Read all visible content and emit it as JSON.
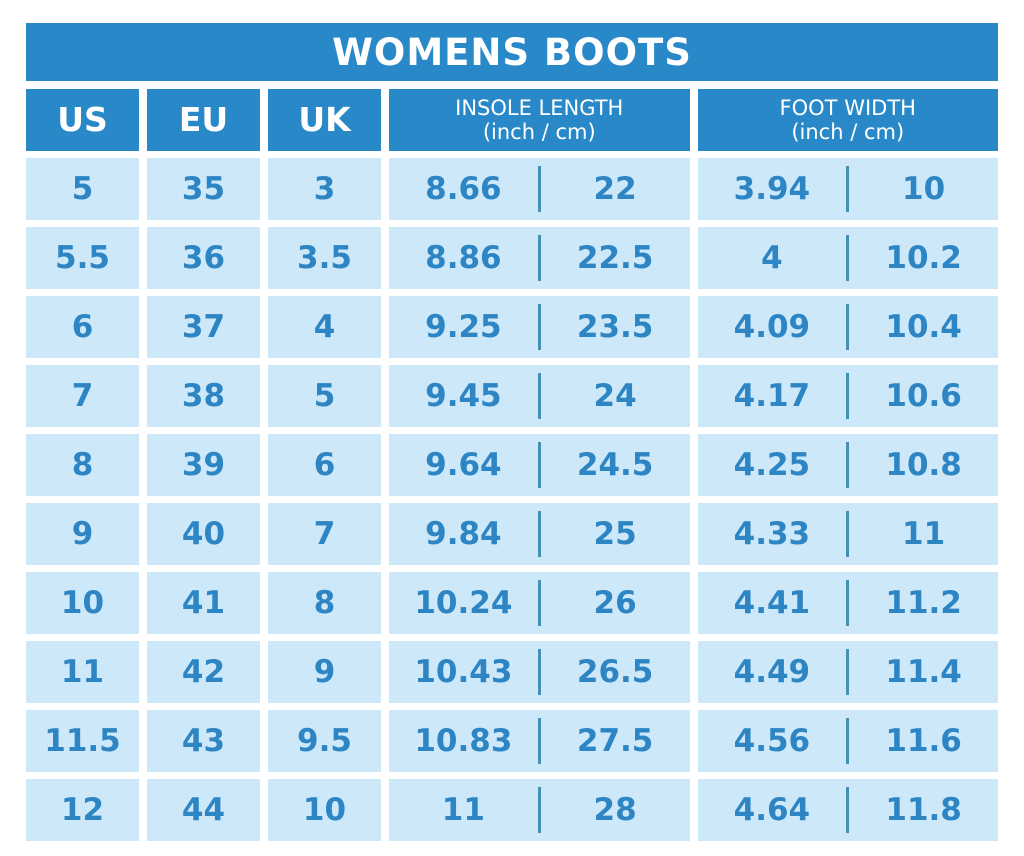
{
  "title": "WOMENS BOOTS",
  "colors": {
    "header_blue": "#2888c8",
    "cell_blue": "#cde8f9",
    "text_blue": "#2d85c4",
    "divider_blue": "#4590b4",
    "background": "#ffffff",
    "title_text": "#ffffff"
  },
  "columns_display": [
    {
      "label": "US",
      "sub": ""
    },
    {
      "label": "EU",
      "sub": ""
    },
    {
      "label": "UK",
      "sub": ""
    },
    {
      "label": "INSOLE LENGTH",
      "sub": "(inch / cm)"
    },
    {
      "label": "FOOT WIDTH",
      "sub": "(inch / cm)"
    }
  ],
  "chart_data": {
    "type": "table",
    "title": "WOMENS BOOTS",
    "columns": [
      "US",
      "EU",
      "UK",
      "INSOLE LENGTH (inch)",
      "INSOLE LENGTH (cm)",
      "FOOT WIDTH (inch)",
      "FOOT WIDTH (cm)"
    ],
    "rows": [
      [
        "5",
        "35",
        "3",
        "8.66",
        "22",
        "3.94",
        "10"
      ],
      [
        "5.5",
        "36",
        "3.5",
        "8.86",
        "22.5",
        "4",
        "10.2"
      ],
      [
        "6",
        "37",
        "4",
        "9.25",
        "23.5",
        "4.09",
        "10.4"
      ],
      [
        "7",
        "38",
        "5",
        "9.45",
        "24",
        "4.17",
        "10.6"
      ],
      [
        "8",
        "39",
        "6",
        "9.64",
        "24.5",
        "4.25",
        "10.8"
      ],
      [
        "9",
        "40",
        "7",
        "9.84",
        "25",
        "4.33",
        "11"
      ],
      [
        "10",
        "41",
        "8",
        "10.24",
        "26",
        "4.41",
        "11.2"
      ],
      [
        "11",
        "42",
        "9",
        "10.43",
        "26.5",
        "4.49",
        "11.4"
      ],
      [
        "11.5",
        "43",
        "9.5",
        "10.83",
        "27.5",
        "4.56",
        "11.6"
      ],
      [
        "12",
        "44",
        "10",
        "11",
        "28",
        "4.64",
        "11.8"
      ]
    ]
  }
}
